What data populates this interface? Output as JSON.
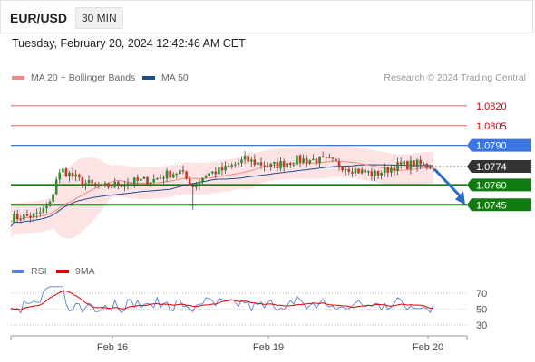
{
  "header": {
    "pair": "EUR/USD",
    "timeframe": "30 MIN"
  },
  "datetime": "Tuesday, February 20, 2024 12:42:46 AM CET",
  "legend": {
    "ma20": {
      "label": "MA 20 + Bollinger Bands",
      "color": "#f28b82"
    },
    "ma50": {
      "label": "MA 50",
      "color": "#1f4e8c"
    },
    "research": "Research © 2024 Trading Central"
  },
  "rsi_legend": {
    "rsi": {
      "label": "RSI",
      "color": "#5b7fd6"
    },
    "ma9": {
      "label": "9MA",
      "color": "#e00000"
    }
  },
  "chart_data": [
    {
      "type": "candlestick",
      "ylim": [
        1.0715,
        1.0835
      ],
      "price_levels": [
        {
          "value": 1.082,
          "label": "1.0820",
          "style": "resistance-thin",
          "color": "#e06666"
        },
        {
          "value": 1.0805,
          "label": "1.0805",
          "style": "resistance-thin",
          "color": "#e06666"
        },
        {
          "value": 1.079,
          "label": "1.0790",
          "style": "resistance",
          "color": "#3a75e0"
        },
        {
          "value": 1.0774,
          "label": "1.0774",
          "style": "current",
          "color": "#333333"
        },
        {
          "value": 1.076,
          "label": "1.0760",
          "style": "support",
          "color": "#117a11"
        },
        {
          "value": 1.0745,
          "label": "1.0745",
          "style": "support",
          "color": "#117a11"
        }
      ],
      "x_labels": [
        "Feb 16",
        "Feb 19",
        "Feb 20"
      ],
      "forecast_arrow": {
        "from": 1.0772,
        "to": 1.0745,
        "color": "#2a6bc6"
      }
    },
    {
      "type": "line",
      "series": [
        {
          "name": "RSI"
        },
        {
          "name": "9MA"
        }
      ],
      "ylim": [
        20,
        80
      ],
      "levels": [
        {
          "value": 70,
          "label": "70"
        },
        {
          "value": 50,
          "label": "50"
        },
        {
          "value": 30,
          "label": "30"
        }
      ]
    }
  ]
}
